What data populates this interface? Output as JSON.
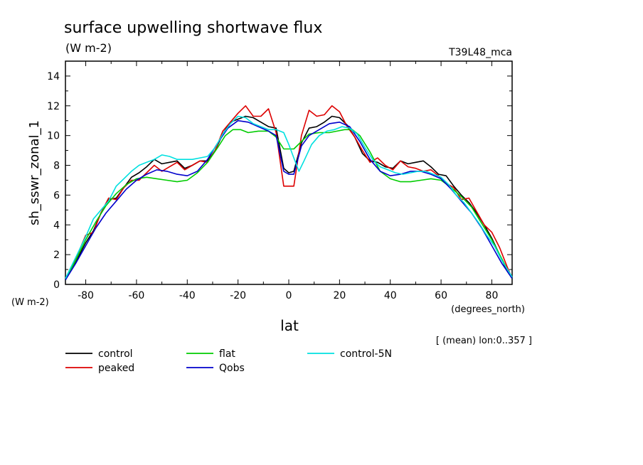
{
  "header": {
    "title": "surface upwelling shortwave flux",
    "units": "(W m-2)",
    "run_label": "T39L48_mca",
    "ylabel": "sh_sswr_zonal_1",
    "xlabel": "lat",
    "y_units": "(W m-2)",
    "x_units": "(degrees_north)",
    "subset_note": "[ (mean) lon:0..357 ]"
  },
  "chart_data": {
    "type": "line",
    "title": "surface upwelling shortwave flux",
    "xlabel": "lat",
    "ylabel": "sh_sswr_zonal_1",
    "xlim": [
      -88,
      88
    ],
    "ylim": [
      0,
      15
    ],
    "x_ticks": [
      -80,
      -60,
      -40,
      -20,
      0,
      20,
      40,
      60,
      80
    ],
    "y_ticks": [
      0,
      2,
      4,
      6,
      8,
      10,
      12,
      14
    ],
    "x_tick_labels": [
      "-80",
      "-60",
      "-40",
      "-20",
      "0",
      "20",
      "40",
      "60",
      "80"
    ],
    "y_tick_labels": [
      "0",
      "2",
      "4",
      "6",
      "8",
      "10",
      "12",
      "14"
    ],
    "grid": false,
    "legend_position": "bottom",
    "series": [
      {
        "name": "control",
        "color": "#000000",
        "points": [
          [
            -88,
            0.3
          ],
          [
            -84,
            1.5
          ],
          [
            -80,
            2.8
          ],
          [
            -77,
            3.6
          ],
          [
            -74,
            4.8
          ],
          [
            -71,
            5.7
          ],
          [
            -68,
            5.8
          ],
          [
            -65,
            6.5
          ],
          [
            -62,
            7.2
          ],
          [
            -59,
            7.5
          ],
          [
            -56,
            7.9
          ],
          [
            -53,
            8.4
          ],
          [
            -50,
            8.1
          ],
          [
            -47,
            8.2
          ],
          [
            -44,
            8.3
          ],
          [
            -41,
            7.8
          ],
          [
            -38,
            8.0
          ],
          [
            -35,
            8.3
          ],
          [
            -32,
            8.3
          ],
          [
            -29,
            9.0
          ],
          [
            -26,
            10.1
          ],
          [
            -23,
            10.9
          ],
          [
            -20,
            11.1
          ],
          [
            -17,
            11.3
          ],
          [
            -14,
            11.2
          ],
          [
            -11,
            10.9
          ],
          [
            -8,
            10.6
          ],
          [
            -5,
            10.5
          ],
          [
            -2,
            7.8
          ],
          [
            0,
            7.5
          ],
          [
            2,
            7.6
          ],
          [
            5,
            9.5
          ],
          [
            8,
            10.5
          ],
          [
            11,
            10.6
          ],
          [
            14,
            10.9
          ],
          [
            17,
            11.3
          ],
          [
            20,
            11.2
          ],
          [
            23,
            10.7
          ],
          [
            26,
            9.9
          ],
          [
            29,
            8.8
          ],
          [
            32,
            8.3
          ],
          [
            35,
            8.2
          ],
          [
            38,
            7.9
          ],
          [
            41,
            7.8
          ],
          [
            44,
            8.3
          ],
          [
            47,
            8.1
          ],
          [
            50,
            8.2
          ],
          [
            53,
            8.3
          ],
          [
            56,
            7.9
          ],
          [
            59,
            7.4
          ],
          [
            62,
            7.3
          ],
          [
            65,
            6.6
          ],
          [
            68,
            6.0
          ],
          [
            71,
            5.5
          ],
          [
            74,
            4.8
          ],
          [
            77,
            4.0
          ],
          [
            80,
            3.1
          ],
          [
            83,
            2.0
          ],
          [
            86,
            0.9
          ],
          [
            88,
            0.4
          ]
        ]
      },
      {
        "name": "peaked",
        "color": "#dd0000",
        "points": [
          [
            -88,
            0.3
          ],
          [
            -84,
            1.7
          ],
          [
            -80,
            3.3
          ],
          [
            -77,
            3.5
          ],
          [
            -74,
            4.8
          ],
          [
            -71,
            5.8
          ],
          [
            -68,
            5.7
          ],
          [
            -65,
            6.5
          ],
          [
            -62,
            7.0
          ],
          [
            -59,
            7.0
          ],
          [
            -56,
            7.5
          ],
          [
            -53,
            8.0
          ],
          [
            -50,
            7.6
          ],
          [
            -47,
            7.9
          ],
          [
            -44,
            8.2
          ],
          [
            -41,
            7.7
          ],
          [
            -38,
            8.0
          ],
          [
            -35,
            8.3
          ],
          [
            -32,
            8.2
          ],
          [
            -29,
            9.0
          ],
          [
            -26,
            10.3
          ],
          [
            -23,
            10.9
          ],
          [
            -20,
            11.5
          ],
          [
            -17,
            12.0
          ],
          [
            -14,
            11.3
          ],
          [
            -11,
            11.3
          ],
          [
            -8,
            11.8
          ],
          [
            -5,
            10.2
          ],
          [
            -2,
            6.6
          ],
          [
            0,
            6.6
          ],
          [
            2,
            6.6
          ],
          [
            5,
            10.0
          ],
          [
            8,
            11.7
          ],
          [
            11,
            11.3
          ],
          [
            14,
            11.4
          ],
          [
            17,
            12.0
          ],
          [
            20,
            11.6
          ],
          [
            23,
            10.6
          ],
          [
            26,
            9.9
          ],
          [
            29,
            9.0
          ],
          [
            32,
            8.2
          ],
          [
            35,
            8.5
          ],
          [
            38,
            8.0
          ],
          [
            41,
            7.7
          ],
          [
            44,
            8.3
          ],
          [
            47,
            7.9
          ],
          [
            50,
            7.8
          ],
          [
            53,
            7.6
          ],
          [
            56,
            7.7
          ],
          [
            59,
            7.3
          ],
          [
            62,
            6.8
          ],
          [
            65,
            6.5
          ],
          [
            68,
            5.7
          ],
          [
            71,
            5.8
          ],
          [
            74,
            4.9
          ],
          [
            77,
            4.0
          ],
          [
            80,
            3.5
          ],
          [
            83,
            2.5
          ],
          [
            86,
            1.2
          ],
          [
            88,
            0.4
          ]
        ]
      },
      {
        "name": "flat",
        "color": "#00cc00",
        "points": [
          [
            -88,
            0.3
          ],
          [
            -84,
            1.6
          ],
          [
            -80,
            3.0
          ],
          [
            -76,
            4.2
          ],
          [
            -72,
            5.3
          ],
          [
            -68,
            6.1
          ],
          [
            -64,
            6.7
          ],
          [
            -60,
            7.1
          ],
          [
            -56,
            7.2
          ],
          [
            -52,
            7.1
          ],
          [
            -48,
            7.0
          ],
          [
            -44,
            6.9
          ],
          [
            -40,
            7.0
          ],
          [
            -36,
            7.5
          ],
          [
            -32,
            8.2
          ],
          [
            -28,
            9.2
          ],
          [
            -25,
            10.0
          ],
          [
            -22,
            10.4
          ],
          [
            -19,
            10.4
          ],
          [
            -16,
            10.2
          ],
          [
            -12,
            10.3
          ],
          [
            -8,
            10.3
          ],
          [
            -5,
            9.9
          ],
          [
            -2,
            9.1
          ],
          [
            0,
            9.1
          ],
          [
            2,
            9.1
          ],
          [
            5,
            9.6
          ],
          [
            8,
            10.1
          ],
          [
            12,
            10.2
          ],
          [
            16,
            10.2
          ],
          [
            19,
            10.3
          ],
          [
            22,
            10.4
          ],
          [
            25,
            10.4
          ],
          [
            28,
            10.0
          ],
          [
            32,
            8.9
          ],
          [
            36,
            7.6
          ],
          [
            40,
            7.1
          ],
          [
            44,
            6.9
          ],
          [
            48,
            6.9
          ],
          [
            52,
            7.0
          ],
          [
            56,
            7.1
          ],
          [
            60,
            7.0
          ],
          [
            64,
            6.5
          ],
          [
            68,
            5.9
          ],
          [
            72,
            5.2
          ],
          [
            76,
            4.1
          ],
          [
            80,
            3.0
          ],
          [
            84,
            1.7
          ],
          [
            88,
            0.4
          ]
        ]
      },
      {
        "name": "Qobs",
        "color": "#0000cc",
        "points": [
          [
            -88,
            0.3
          ],
          [
            -84,
            1.4
          ],
          [
            -80,
            2.6
          ],
          [
            -76,
            3.8
          ],
          [
            -72,
            4.8
          ],
          [
            -68,
            5.6
          ],
          [
            -64,
            6.4
          ],
          [
            -60,
            7.0
          ],
          [
            -56,
            7.4
          ],
          [
            -52,
            7.7
          ],
          [
            -48,
            7.6
          ],
          [
            -44,
            7.4
          ],
          [
            -40,
            7.3
          ],
          [
            -36,
            7.6
          ],
          [
            -32,
            8.4
          ],
          [
            -28,
            9.5
          ],
          [
            -24,
            10.5
          ],
          [
            -20,
            11.0
          ],
          [
            -16,
            10.9
          ],
          [
            -12,
            10.6
          ],
          [
            -8,
            10.3
          ],
          [
            -5,
            10.0
          ],
          [
            -2,
            7.6
          ],
          [
            0,
            7.4
          ],
          [
            2,
            7.4
          ],
          [
            5,
            9.3
          ],
          [
            8,
            10.0
          ],
          [
            12,
            10.4
          ],
          [
            16,
            10.8
          ],
          [
            20,
            10.9
          ],
          [
            24,
            10.6
          ],
          [
            28,
            9.6
          ],
          [
            32,
            8.4
          ],
          [
            36,
            7.6
          ],
          [
            40,
            7.3
          ],
          [
            44,
            7.4
          ],
          [
            48,
            7.6
          ],
          [
            52,
            7.6
          ],
          [
            56,
            7.4
          ],
          [
            60,
            7.1
          ],
          [
            64,
            6.4
          ],
          [
            68,
            5.6
          ],
          [
            72,
            4.8
          ],
          [
            76,
            3.8
          ],
          [
            80,
            2.6
          ],
          [
            84,
            1.4
          ],
          [
            88,
            0.4
          ]
        ]
      },
      {
        "name": "control-5N",
        "color": "#00e0e0",
        "points": [
          [
            -88,
            0.4
          ],
          [
            -84,
            1.8
          ],
          [
            -80,
            3.2
          ],
          [
            -77,
            4.4
          ],
          [
            -74,
            5.0
          ],
          [
            -71,
            5.6
          ],
          [
            -68,
            6.6
          ],
          [
            -65,
            7.1
          ],
          [
            -62,
            7.6
          ],
          [
            -59,
            8.0
          ],
          [
            -56,
            8.2
          ],
          [
            -53,
            8.4
          ],
          [
            -50,
            8.7
          ],
          [
            -47,
            8.6
          ],
          [
            -44,
            8.4
          ],
          [
            -41,
            8.4
          ],
          [
            -38,
            8.4
          ],
          [
            -35,
            8.5
          ],
          [
            -32,
            8.6
          ],
          [
            -29,
            9.2
          ],
          [
            -26,
            10.1
          ],
          [
            -23,
            10.8
          ],
          [
            -20,
            11.3
          ],
          [
            -17,
            11.2
          ],
          [
            -14,
            10.8
          ],
          [
            -11,
            10.6
          ],
          [
            -8,
            10.4
          ],
          [
            -5,
            10.4
          ],
          [
            -2,
            10.2
          ],
          [
            0,
            9.4
          ],
          [
            2,
            8.5
          ],
          [
            4,
            7.6
          ],
          [
            6,
            8.3
          ],
          [
            9,
            9.4
          ],
          [
            12,
            10.0
          ],
          [
            15,
            10.3
          ],
          [
            18,
            10.4
          ],
          [
            21,
            10.6
          ],
          [
            24,
            10.5
          ],
          [
            27,
            10.1
          ],
          [
            30,
            9.2
          ],
          [
            33,
            8.4
          ],
          [
            36,
            7.9
          ],
          [
            39,
            7.7
          ],
          [
            42,
            7.5
          ],
          [
            45,
            7.4
          ],
          [
            48,
            7.5
          ],
          [
            51,
            7.6
          ],
          [
            54,
            7.6
          ],
          [
            57,
            7.4
          ],
          [
            60,
            7.2
          ],
          [
            63,
            6.7
          ],
          [
            66,
            6.0
          ],
          [
            69,
            5.5
          ],
          [
            72,
            4.8
          ],
          [
            75,
            4.1
          ],
          [
            78,
            3.3
          ],
          [
            81,
            2.6
          ],
          [
            84,
            1.6
          ],
          [
            88,
            0.5
          ]
        ]
      }
    ]
  }
}
